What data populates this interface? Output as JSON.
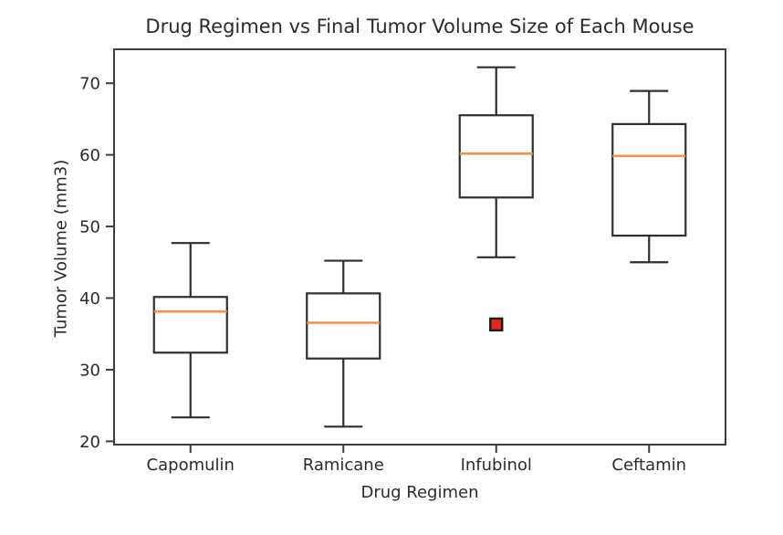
{
  "chart_data": {
    "type": "box",
    "title": "Drug Regimen vs Final Tumor Volume Size of Each Mouse",
    "xlabel": "Drug Regimen",
    "ylabel": "Tumor Volume (mm3)",
    "categories": [
      "Capomulin",
      "Ramicane",
      "Infubinol",
      "Ceftamin"
    ],
    "yticks": [
      20,
      30,
      40,
      50,
      60,
      70
    ],
    "ylim": [
      19.54,
      74.74
    ],
    "grid": false,
    "legend": false,
    "series": [
      {
        "name": "Capomulin",
        "whisker_low": 23.34,
        "q1": 32.38,
        "median": 38.13,
        "q3": 40.16,
        "whisker_high": 47.69,
        "outliers": []
      },
      {
        "name": "Ramicane",
        "whisker_low": 22.05,
        "q1": 31.56,
        "median": 36.56,
        "q3": 40.66,
        "whisker_high": 45.22,
        "outliers": []
      },
      {
        "name": "Infubinol",
        "whisker_low": 45.7,
        "q1": 54.05,
        "median": 60.17,
        "q3": 65.53,
        "whisker_high": 72.23,
        "outliers": [
          36.32
        ]
      },
      {
        "name": "Ceftamin",
        "whisker_low": 45.0,
        "q1": 48.72,
        "median": 59.85,
        "q3": 64.3,
        "whisker_high": 68.92,
        "outliers": []
      }
    ],
    "colors": {
      "axis": "#3d3d3d",
      "box_edge": "#2e2e2e",
      "median": "#f68d4b",
      "outlier_fill": "#e3281e",
      "outlier_edge": "#1c1c1c",
      "text": "#2b2b2b",
      "background": "#ffffff"
    }
  }
}
